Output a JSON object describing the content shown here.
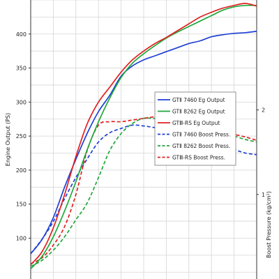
{
  "chart_data": {
    "type": "line",
    "title": "",
    "xlabel": "",
    "ylabel": "Engine Output (PS)",
    "y2label": "Boost Pressure (kg/cm²)",
    "grid": true,
    "legend_position": "right-center",
    "x_range": [
      0,
      100
    ],
    "ylim": [
      40,
      450
    ],
    "y_ticks": [
      "100",
      "150",
      "200",
      "250",
      "300",
      "350",
      "400"
    ],
    "y2lim": [
      0,
      3.3
    ],
    "y2_ticks": [
      "1",
      "2"
    ],
    "series": [
      {
        "name": "GTⅡ 7460 Eg Output",
        "axis": "left",
        "color": "#1f3fd6",
        "dash": "solid",
        "x": [
          0,
          5,
          10,
          15,
          20,
          25,
          30,
          35,
          40,
          45,
          50,
          55,
          60,
          65,
          70,
          75,
          80,
          85,
          90,
          95,
          100
        ],
        "y": [
          77,
          98,
          130,
          175,
          216,
          254,
          286,
          310,
          338,
          353,
          362,
          368,
          374,
          380,
          386,
          390,
          396,
          399,
          401,
          402,
          404
        ]
      },
      {
        "name": "GTⅡ 8262 Eg Output",
        "axis": "left",
        "color": "#1ea83a",
        "dash": "solid",
        "x": [
          0,
          5,
          10,
          15,
          20,
          25,
          30,
          35,
          40,
          45,
          50,
          55,
          60,
          65,
          70,
          75,
          80,
          85,
          90,
          95,
          100
        ],
        "y": [
          55,
          73,
          102,
          140,
          183,
          230,
          271,
          306,
          336,
          357,
          371,
          383,
          394,
          403,
          411,
          419,
          427,
          435,
          440,
          442,
          442
        ]
      },
      {
        "name": "GTⅢ-RS Eg Output",
        "axis": "left",
        "color": "#e02020",
        "dash": "solid",
        "x": [
          0,
          5,
          10,
          15,
          20,
          25,
          30,
          35,
          40,
          45,
          50,
          55,
          60,
          65,
          70,
          75,
          80,
          85,
          90,
          95,
          100
        ],
        "y": [
          61,
          80,
          115,
          164,
          220,
          268,
          300,
          322,
          344,
          362,
          375,
          386,
          395,
          405,
          415,
          425,
          432,
          438,
          442,
          445,
          441
        ]
      },
      {
        "name": "GTⅡ 7460 Boost Press.",
        "axis": "right",
        "color": "#1f3fd6",
        "dash": "dashed",
        "x": [
          0,
          5,
          10,
          15,
          20,
          25,
          30,
          35,
          40,
          45,
          50,
          55,
          60,
          65,
          70,
          75,
          80,
          85,
          90,
          95,
          100
        ],
        "y": [
          0.3,
          0.47,
          0.68,
          0.95,
          1.2,
          1.42,
          1.62,
          1.73,
          1.78,
          1.82,
          1.81,
          1.79,
          1.77,
          1.75,
          1.72,
          1.66,
          1.61,
          1.56,
          1.53,
          1.49,
          1.47
        ]
      },
      {
        "name": "GTⅡ 8262 Boost Press.",
        "axis": "right",
        "color": "#1ea83a",
        "dash": "dashed",
        "x": [
          0,
          5,
          10,
          15,
          20,
          25,
          30,
          35,
          40,
          45,
          50,
          55,
          60,
          65,
          70,
          75,
          80,
          85,
          90,
          95,
          100
        ],
        "y": [
          0.15,
          0.22,
          0.34,
          0.5,
          0.7,
          0.9,
          1.2,
          1.52,
          1.72,
          1.84,
          1.9,
          1.9,
          1.9,
          1.88,
          1.84,
          1.79,
          1.74,
          1.72,
          1.69,
          1.65,
          1.62
        ]
      },
      {
        "name": "GTⅢ-RS Boost Press.",
        "axis": "right",
        "color": "#e02020",
        "dash": "dashed",
        "x": [
          0,
          5,
          10,
          15,
          20,
          25,
          30,
          35,
          40,
          45,
          50,
          55,
          60,
          65,
          70,
          75,
          80,
          85,
          90,
          95,
          100
        ],
        "y": [
          0.18,
          0.25,
          0.4,
          0.62,
          1.0,
          1.52,
          1.82,
          1.86,
          1.86,
          1.88,
          1.9,
          1.92,
          1.93,
          1.92,
          1.9,
          1.86,
          1.8,
          1.74,
          1.71,
          1.68,
          1.64
        ]
      }
    ]
  }
}
